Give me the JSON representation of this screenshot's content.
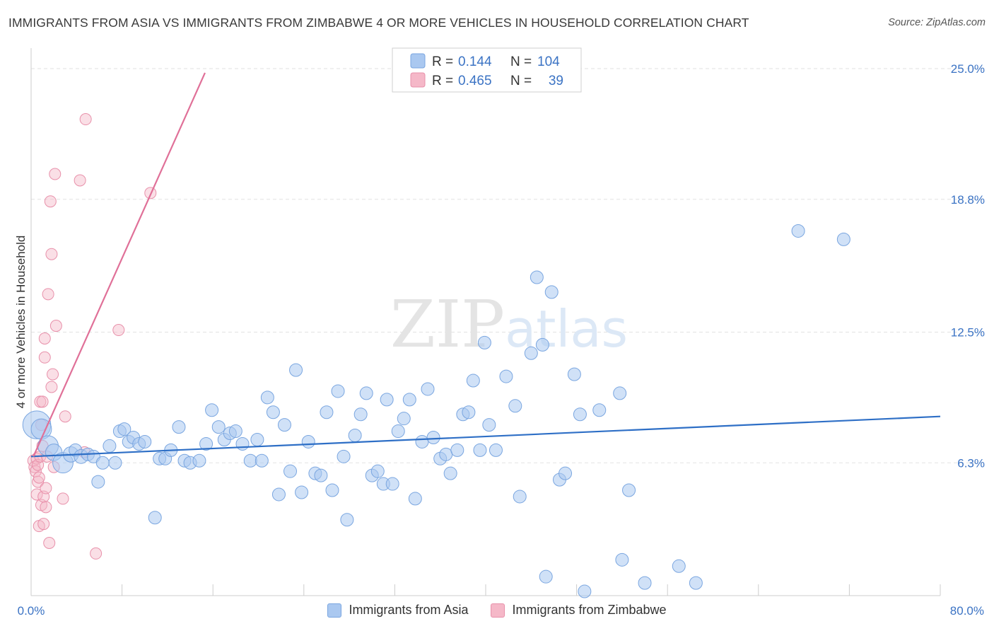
{
  "title": "IMMIGRANTS FROM ASIA VS IMMIGRANTS FROM ZIMBABWE 4 OR MORE VEHICLES IN HOUSEHOLD CORRELATION CHART",
  "source": "Source: ZipAtlas.com",
  "watermark": "ZIPatlas",
  "colors": {
    "asia_fill": "#aac8f0",
    "asia_stroke": "#7aa6e0",
    "asia_line": "#2e6fc6",
    "zim_fill": "#f5b8c8",
    "zim_stroke": "#e890aa",
    "zim_line": "#e07098",
    "axis_text": "#3b73c4",
    "grid": "#e2e2e2"
  },
  "legend": {
    "rows": [
      {
        "r_label": "R =",
        "r_value": "0.144",
        "n_label": "N =",
        "n_value": "104"
      },
      {
        "r_label": "R =",
        "r_value": "0.465",
        "n_label": "N =",
        "n_value": "39"
      }
    ]
  },
  "bottom_legend": [
    "Immigrants from Asia",
    "Immigrants from Zimbabwe"
  ],
  "chart_data": {
    "type": "scatter",
    "title": "IMMIGRANTS FROM ASIA VS IMMIGRANTS FROM ZIMBABWE 4 OR MORE VEHICLES IN HOUSEHOLD CORRELATION CHART",
    "xlabel": "",
    "ylabel": "4 or more Vehicles in Household",
    "xlim": [
      0,
      80
    ],
    "ylim": [
      0,
      25.0
    ],
    "x_tick_labels": [
      "0.0%",
      "80.0%"
    ],
    "y_ticks": [
      6.3,
      12.5,
      18.8,
      25.0
    ],
    "y_tick_labels": [
      "6.3%",
      "12.5%",
      "18.8%",
      "25.0%"
    ],
    "legend_position": "top-center",
    "series": [
      {
        "name": "Immigrants from Asia",
        "r": 0.144,
        "n": 104,
        "trend": {
          "x": [
            0,
            80
          ],
          "y": [
            6.6,
            8.5
          ]
        },
        "points": [
          [
            0.5,
            8.1,
            2.2
          ],
          [
            0.9,
            7.9,
            1.6
          ],
          [
            1.5,
            7.1,
            1.6
          ],
          [
            2.0,
            6.8,
            1.3
          ],
          [
            2.8,
            6.3,
            1.6
          ],
          [
            3.5,
            6.7,
            1.2
          ],
          [
            3.9,
            6.9,
            1.0
          ],
          [
            4.4,
            6.6,
            1.1
          ],
          [
            5.0,
            6.7,
            1.0
          ],
          [
            5.5,
            6.6,
            1.0
          ],
          [
            5.9,
            5.4,
            1.0
          ],
          [
            6.3,
            6.3,
            1.0
          ],
          [
            6.9,
            7.1,
            1.0
          ],
          [
            7.4,
            6.3,
            1.0
          ],
          [
            7.8,
            7.8,
            1.0
          ],
          [
            8.2,
            7.9,
            1.0
          ],
          [
            8.6,
            7.3,
            1.0
          ],
          [
            9.0,
            7.5,
            1.0
          ],
          [
            9.5,
            7.2,
            1.0
          ],
          [
            10.0,
            7.3,
            1.0
          ],
          [
            10.9,
            3.7,
            1.0
          ],
          [
            11.3,
            6.5,
            1.0
          ],
          [
            11.8,
            6.5,
            1.0
          ],
          [
            12.3,
            6.9,
            1.0
          ],
          [
            13.0,
            8.0,
            1.0
          ],
          [
            13.5,
            6.4,
            1.0
          ],
          [
            14.0,
            6.3,
            1.0
          ],
          [
            14.8,
            6.4,
            1.0
          ],
          [
            15.4,
            7.2,
            1.0
          ],
          [
            15.9,
            8.8,
            1.0
          ],
          [
            16.5,
            8.0,
            1.0
          ],
          [
            17.0,
            7.4,
            1.0
          ],
          [
            17.5,
            7.7,
            1.0
          ],
          [
            18.0,
            7.8,
            1.0
          ],
          [
            18.6,
            7.2,
            1.0
          ],
          [
            19.3,
            6.4,
            1.0
          ],
          [
            19.9,
            7.4,
            1.0
          ],
          [
            20.3,
            6.4,
            1.0
          ],
          [
            20.8,
            9.4,
            1.0
          ],
          [
            21.3,
            8.7,
            1.0
          ],
          [
            21.8,
            4.8,
            1.0
          ],
          [
            22.3,
            8.1,
            1.0
          ],
          [
            22.8,
            5.9,
            1.0
          ],
          [
            23.3,
            10.7,
            1.0
          ],
          [
            23.8,
            4.9,
            1.0
          ],
          [
            24.4,
            7.3,
            1.0
          ],
          [
            25.0,
            5.8,
            1.0
          ],
          [
            25.5,
            5.7,
            1.0
          ],
          [
            26.0,
            8.7,
            1.0
          ],
          [
            26.5,
            5.0,
            1.0
          ],
          [
            27.0,
            9.7,
            1.0
          ],
          [
            27.5,
            6.6,
            1.0
          ],
          [
            27.8,
            3.6,
            1.0
          ],
          [
            28.5,
            7.6,
            1.0
          ],
          [
            29.0,
            8.6,
            1.0
          ],
          [
            29.5,
            9.6,
            1.0
          ],
          [
            30.0,
            5.7,
            1.0
          ],
          [
            30.5,
            5.9,
            1.0
          ],
          [
            31.0,
            5.3,
            1.0
          ],
          [
            31.3,
            9.3,
            1.0
          ],
          [
            31.8,
            5.3,
            1.0
          ],
          [
            32.3,
            7.8,
            1.0
          ],
          [
            32.8,
            8.4,
            1.0
          ],
          [
            33.3,
            9.3,
            1.0
          ],
          [
            33.8,
            4.6,
            1.0
          ],
          [
            34.4,
            7.3,
            1.0
          ],
          [
            34.9,
            9.8,
            1.0
          ],
          [
            35.4,
            7.5,
            1.0
          ],
          [
            36.0,
            6.5,
            1.0
          ],
          [
            36.5,
            6.7,
            1.0
          ],
          [
            36.9,
            5.8,
            1.0
          ],
          [
            37.5,
            6.9,
            1.0
          ],
          [
            38.0,
            8.6,
            1.0
          ],
          [
            38.5,
            8.7,
            1.0
          ],
          [
            38.9,
            10.2,
            1.0
          ],
          [
            39.5,
            6.9,
            1.0
          ],
          [
            39.9,
            12.0,
            1.0
          ],
          [
            40.3,
            8.1,
            1.0
          ],
          [
            40.9,
            6.9,
            1.0
          ],
          [
            41.8,
            10.4,
            1.0
          ],
          [
            42.6,
            9.0,
            1.0
          ],
          [
            43.0,
            4.7,
            1.0
          ],
          [
            44.0,
            11.5,
            1.0
          ],
          [
            44.5,
            15.1,
            1.0
          ],
          [
            45.0,
            11.9,
            1.0
          ],
          [
            45.3,
            0.9,
            1.0
          ],
          [
            45.8,
            14.4,
            1.0
          ],
          [
            46.5,
            5.5,
            1.0
          ],
          [
            47.0,
            5.8,
            1.0
          ],
          [
            47.8,
            10.5,
            1.0
          ],
          [
            48.3,
            8.6,
            1.0
          ],
          [
            48.7,
            0.2,
            1.0
          ],
          [
            50.0,
            8.8,
            1.0
          ],
          [
            51.8,
            9.6,
            1.0
          ],
          [
            52.0,
            1.7,
            1.0
          ],
          [
            52.6,
            5.0,
            1.0
          ],
          [
            54.0,
            0.6,
            1.0
          ],
          [
            57.0,
            1.4,
            1.0
          ],
          [
            58.5,
            0.6,
            1.0
          ],
          [
            67.5,
            17.3,
            1.0
          ],
          [
            71.5,
            16.9,
            1.0
          ]
        ]
      },
      {
        "name": "Immigrants from Zimbabwe",
        "r": 0.465,
        "n": 39,
        "trend": {
          "x": [
            0.2,
            15.3
          ],
          "y": [
            6.6,
            24.8
          ]
        },
        "points": [
          [
            0.2,
            6.4
          ],
          [
            0.3,
            6.1
          ],
          [
            0.4,
            5.9
          ],
          [
            0.5,
            6.5
          ],
          [
            0.5,
            4.8
          ],
          [
            0.6,
            5.4
          ],
          [
            0.6,
            6.2
          ],
          [
            0.7,
            3.3
          ],
          [
            0.7,
            5.6
          ],
          [
            0.8,
            6.6
          ],
          [
            0.8,
            9.2
          ],
          [
            0.9,
            8.1
          ],
          [
            0.9,
            4.3
          ],
          [
            1.0,
            7.1
          ],
          [
            1.0,
            9.2
          ],
          [
            1.1,
            4.7
          ],
          [
            1.1,
            3.4
          ],
          [
            1.2,
            11.3
          ],
          [
            1.2,
            12.2
          ],
          [
            1.3,
            4.2
          ],
          [
            1.3,
            5.1
          ],
          [
            1.4,
            6.6
          ],
          [
            1.5,
            14.3
          ],
          [
            1.6,
            2.5
          ],
          [
            1.7,
            18.7
          ],
          [
            1.8,
            9.9
          ],
          [
            1.8,
            16.2
          ],
          [
            1.9,
            10.5
          ],
          [
            2.0,
            6.1
          ],
          [
            2.1,
            20.0
          ],
          [
            2.2,
            12.8
          ],
          [
            2.8,
            4.6
          ],
          [
            3.0,
            8.5
          ],
          [
            4.3,
            19.7
          ],
          [
            4.7,
            6.8
          ],
          [
            4.8,
            22.6
          ],
          [
            5.7,
            2.0
          ],
          [
            7.7,
            12.6
          ],
          [
            10.5,
            19.1
          ]
        ]
      }
    ]
  }
}
